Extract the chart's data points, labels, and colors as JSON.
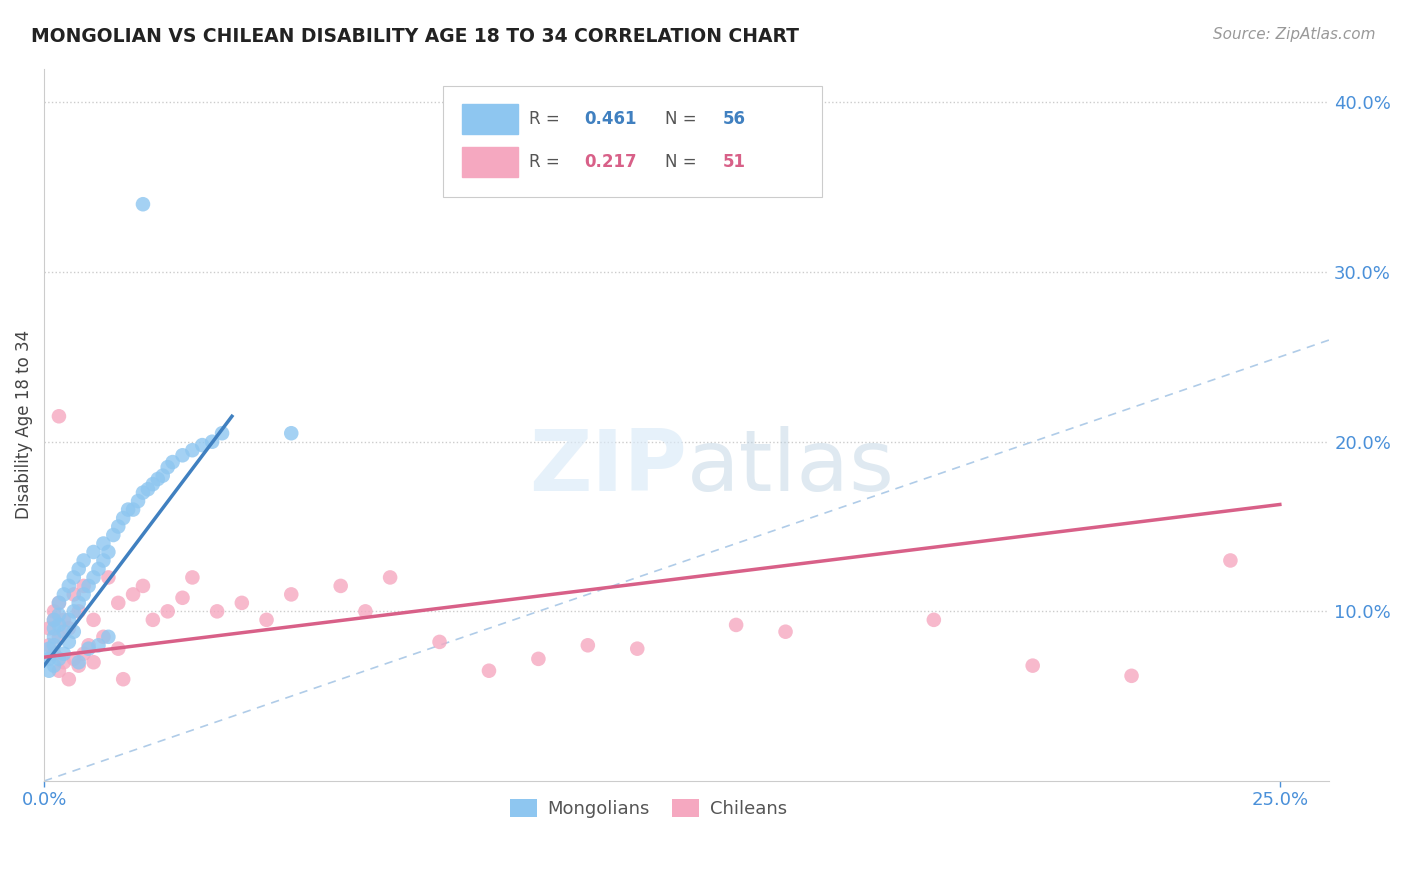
{
  "title": "MONGOLIAN VS CHILEAN DISABILITY AGE 18 TO 34 CORRELATION CHART",
  "source": "Source: ZipAtlas.com",
  "ylabel": "Disability Age 18 to 34",
  "ylim": [
    0.0,
    0.42
  ],
  "xlim": [
    0.0,
    0.26
  ],
  "legend_mongolians": "Mongolians",
  "legend_chileans": "Chileans",
  "R_mongolian": "0.461",
  "N_mongolian": "56",
  "R_chilean": "0.217",
  "N_chilean": "51",
  "mongolian_color": "#8ec6f0",
  "chilean_color": "#f5a8c0",
  "mongolian_line_color": "#4080c0",
  "chilean_line_color": "#d86088",
  "diagonal_color": "#b0cce8",
  "background_color": "#ffffff",
  "mon_line_x0": 0.0,
  "mon_line_x1": 0.038,
  "mon_line_y0": 0.068,
  "mon_line_y1": 0.215,
  "chi_line_x0": 0.0,
  "chi_line_x1": 0.25,
  "chi_line_y0": 0.073,
  "chi_line_y1": 0.163,
  "mongolian_x": [
    0.001,
    0.001,
    0.001,
    0.002,
    0.002,
    0.002,
    0.002,
    0.002,
    0.003,
    0.003,
    0.003,
    0.003,
    0.004,
    0.004,
    0.004,
    0.005,
    0.005,
    0.005,
    0.006,
    0.006,
    0.006,
    0.007,
    0.007,
    0.007,
    0.008,
    0.008,
    0.009,
    0.009,
    0.01,
    0.01,
    0.011,
    0.011,
    0.012,
    0.012,
    0.013,
    0.013,
    0.014,
    0.015,
    0.016,
    0.017,
    0.018,
    0.019,
    0.02,
    0.021,
    0.022,
    0.023,
    0.024,
    0.025,
    0.026,
    0.028,
    0.03,
    0.032,
    0.034,
    0.036,
    0.05,
    0.02
  ],
  "mongolian_y": [
    0.065,
    0.072,
    0.078,
    0.08,
    0.085,
    0.09,
    0.095,
    0.068,
    0.092,
    0.098,
    0.072,
    0.105,
    0.088,
    0.11,
    0.075,
    0.095,
    0.115,
    0.082,
    0.1,
    0.12,
    0.088,
    0.105,
    0.125,
    0.07,
    0.11,
    0.13,
    0.115,
    0.078,
    0.12,
    0.135,
    0.125,
    0.08,
    0.13,
    0.14,
    0.135,
    0.085,
    0.145,
    0.15,
    0.155,
    0.16,
    0.16,
    0.165,
    0.17,
    0.172,
    0.175,
    0.178,
    0.18,
    0.185,
    0.188,
    0.192,
    0.195,
    0.198,
    0.2,
    0.205,
    0.205,
    0.34
  ],
  "chilean_x": [
    0.001,
    0.001,
    0.002,
    0.002,
    0.002,
    0.003,
    0.003,
    0.003,
    0.004,
    0.004,
    0.005,
    0.005,
    0.006,
    0.006,
    0.007,
    0.007,
    0.008,
    0.008,
    0.009,
    0.01,
    0.01,
    0.012,
    0.013,
    0.015,
    0.015,
    0.016,
    0.018,
    0.02,
    0.022,
    0.025,
    0.028,
    0.03,
    0.035,
    0.04,
    0.045,
    0.05,
    0.06,
    0.065,
    0.07,
    0.08,
    0.09,
    0.1,
    0.11,
    0.12,
    0.14,
    0.15,
    0.18,
    0.2,
    0.22,
    0.24,
    0.003
  ],
  "chilean_y": [
    0.08,
    0.09,
    0.095,
    0.075,
    0.1,
    0.065,
    0.085,
    0.105,
    0.07,
    0.095,
    0.06,
    0.09,
    0.072,
    0.11,
    0.068,
    0.1,
    0.075,
    0.115,
    0.08,
    0.07,
    0.095,
    0.085,
    0.12,
    0.078,
    0.105,
    0.06,
    0.11,
    0.115,
    0.095,
    0.1,
    0.108,
    0.12,
    0.1,
    0.105,
    0.095,
    0.11,
    0.115,
    0.1,
    0.12,
    0.082,
    0.065,
    0.072,
    0.08,
    0.078,
    0.092,
    0.088,
    0.095,
    0.068,
    0.062,
    0.13,
    0.215
  ]
}
